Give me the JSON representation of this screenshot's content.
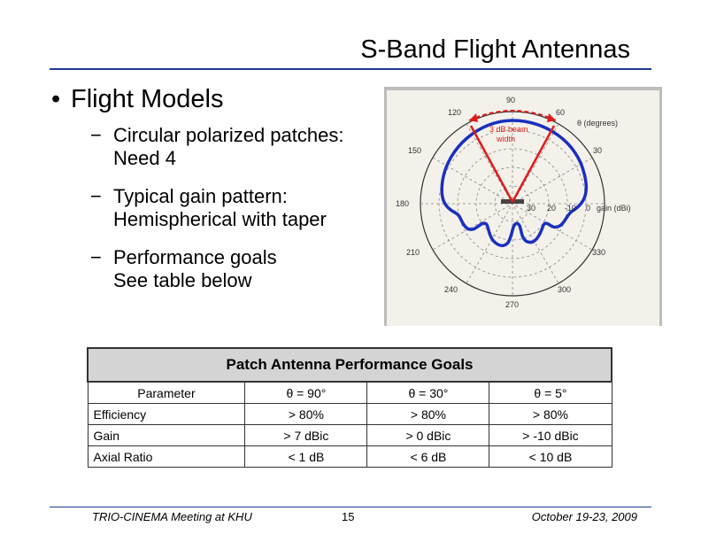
{
  "slide": {
    "title": "S-Band Flight Antennas",
    "bullet": "Flight Models",
    "bullet_symbol": "•",
    "dash_symbol": "−",
    "subbullets": [
      {
        "line1": "Circular polarized patches:",
        "line2": "Need 4"
      },
      {
        "line1": "Typical gain pattern:",
        "line2": "Hemispherical with taper"
      },
      {
        "line1": "Performance goals",
        "line2": "See table below"
      }
    ]
  },
  "figure": {
    "angle_labels": {
      "a90": "90",
      "a60": "60",
      "a120": "120",
      "a30": "30",
      "a150": "150",
      "a180": "180",
      "a210": "210",
      "a240": "240",
      "a270": "270",
      "a300": "300",
      "a330": "330"
    },
    "theta_label": "θ (degrees)",
    "beam_label_1": "3 dB beam",
    "beam_label_2": "width",
    "gain_ticks": [
      "30",
      "20",
      "-10",
      "0"
    ],
    "gain_label": "gain (dBi)",
    "colors": {
      "pattern": "#1a2fbf",
      "beam": "#e11b1b",
      "grid": "#888888"
    }
  },
  "table": {
    "caption": "Patch Antenna Performance Goals",
    "headers": [
      "Parameter",
      "θ = 90°",
      "θ = 30°",
      "θ = 5°"
    ],
    "rows": [
      [
        "Efficiency",
        "> 80%",
        "> 80%",
        "> 80%"
      ],
      [
        "Gain",
        "> 7 dBic",
        "> 0 dBic",
        "> -10 dBic"
      ],
      [
        "Axial Ratio",
        "< 1 dB",
        "< 6 dB",
        "< 10 dB"
      ]
    ]
  },
  "footer": {
    "left": "TRIO-CINEMA Meeting at KHU",
    "page": "15",
    "right": "October 19-23, 2009"
  }
}
